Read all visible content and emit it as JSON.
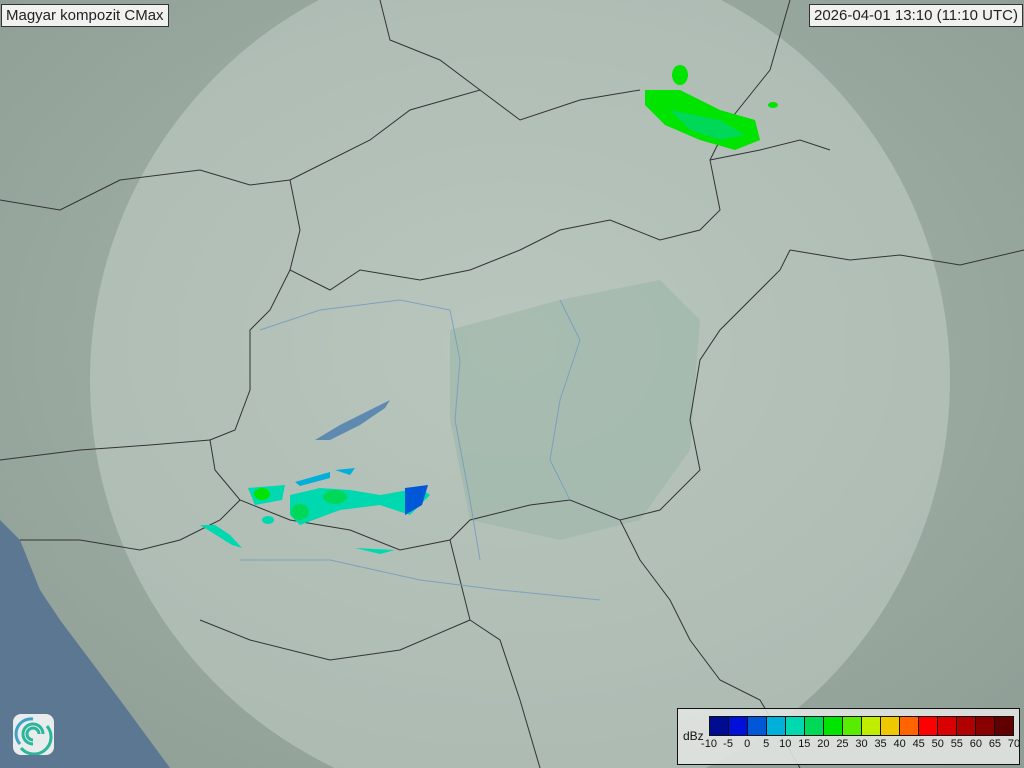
{
  "header": {
    "title": "Magyar kompozit  CMax",
    "timestamp": "2026-04-01 13:10 (11:10 UTC)"
  },
  "legend": {
    "unit": "dBz",
    "ticks": [
      "-10",
      "-5",
      "0",
      "5",
      "10",
      "15",
      "20",
      "25",
      "30",
      "35",
      "40",
      "45",
      "50",
      "55",
      "60",
      "65",
      "70"
    ],
    "colors": [
      "#000c8f",
      "#0010d8",
      "#0058d8",
      "#00b0d8",
      "#00d8b0",
      "#00d858",
      "#00e400",
      "#58ec00",
      "#c0ec00",
      "#f0c800",
      "#ff6400",
      "#ff0000",
      "#d80000",
      "#b00000",
      "#880000",
      "#600000"
    ]
  },
  "logo": {
    "name": "swirl-logo-icon"
  }
}
